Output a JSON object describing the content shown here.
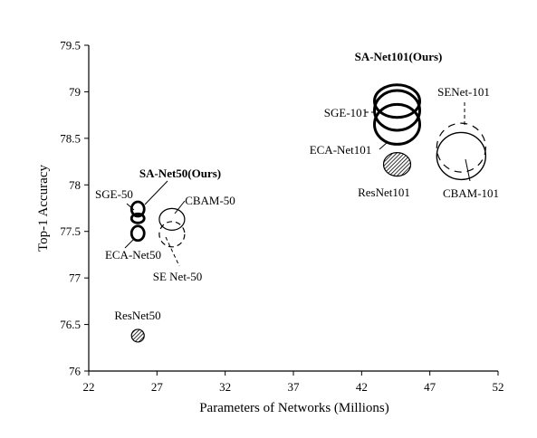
{
  "chart_data": {
    "type": "scatter",
    "title": "",
    "xlabel": "Parameters of Networks  (Millions)",
    "ylabel": "Top-1 Accuracy",
    "xlim": [
      22,
      52
    ],
    "ylim": [
      76,
      79.5
    ],
    "xticks": [
      22,
      27,
      32,
      37,
      42,
      47,
      52
    ],
    "yticks": [
      76,
      76.5,
      77,
      77.5,
      78,
      78.5,
      79,
      79.5
    ],
    "grid": false,
    "legend": "none",
    "points": [
      {
        "label": "ResNet50",
        "x": 25.6,
        "y": 76.38,
        "style": "hatched",
        "bold": false
      },
      {
        "label": "SE Net-50",
        "x": 28.1,
        "y": 77.47,
        "style": "dashed",
        "bold": false
      },
      {
        "label": "CBAM-50",
        "x": 28.1,
        "y": 77.63,
        "style": "solid-thin",
        "bold": false
      },
      {
        "label": "SGE-50",
        "x": 25.6,
        "y": 77.74,
        "style": "solid-bold",
        "bold": false
      },
      {
        "label": "ECA-Net50",
        "x": 25.6,
        "y": 77.48,
        "style": "solid-bold",
        "bold": false
      },
      {
        "label": "SA-Net50(Ours)",
        "x": 25.6,
        "y": 77.64,
        "style": "solid-bold",
        "bold": true
      },
      {
        "label": "ResNet101",
        "x": 44.6,
        "y": 78.22,
        "style": "hatched",
        "bold": false
      },
      {
        "label": "SENet-101",
        "x": 49.3,
        "y": 78.4,
        "style": "dashed",
        "bold": false
      },
      {
        "label": "CBAM-101",
        "x": 49.3,
        "y": 78.31,
        "style": "solid-thin",
        "bold": false
      },
      {
        "label": "SGE-101",
        "x": 44.6,
        "y": 78.8,
        "style": "solid-bold",
        "bold": false
      },
      {
        "label": "ECA-Net101",
        "x": 44.6,
        "y": 78.65,
        "style": "solid-bold",
        "bold": false
      },
      {
        "label": "SA-Net101(Ours)",
        "x": 44.6,
        "y": 78.9,
        "style": "solid-bold",
        "bold": true
      }
    ],
    "colors": {
      "ink": "#000000",
      "background": "#ffffff"
    }
  }
}
